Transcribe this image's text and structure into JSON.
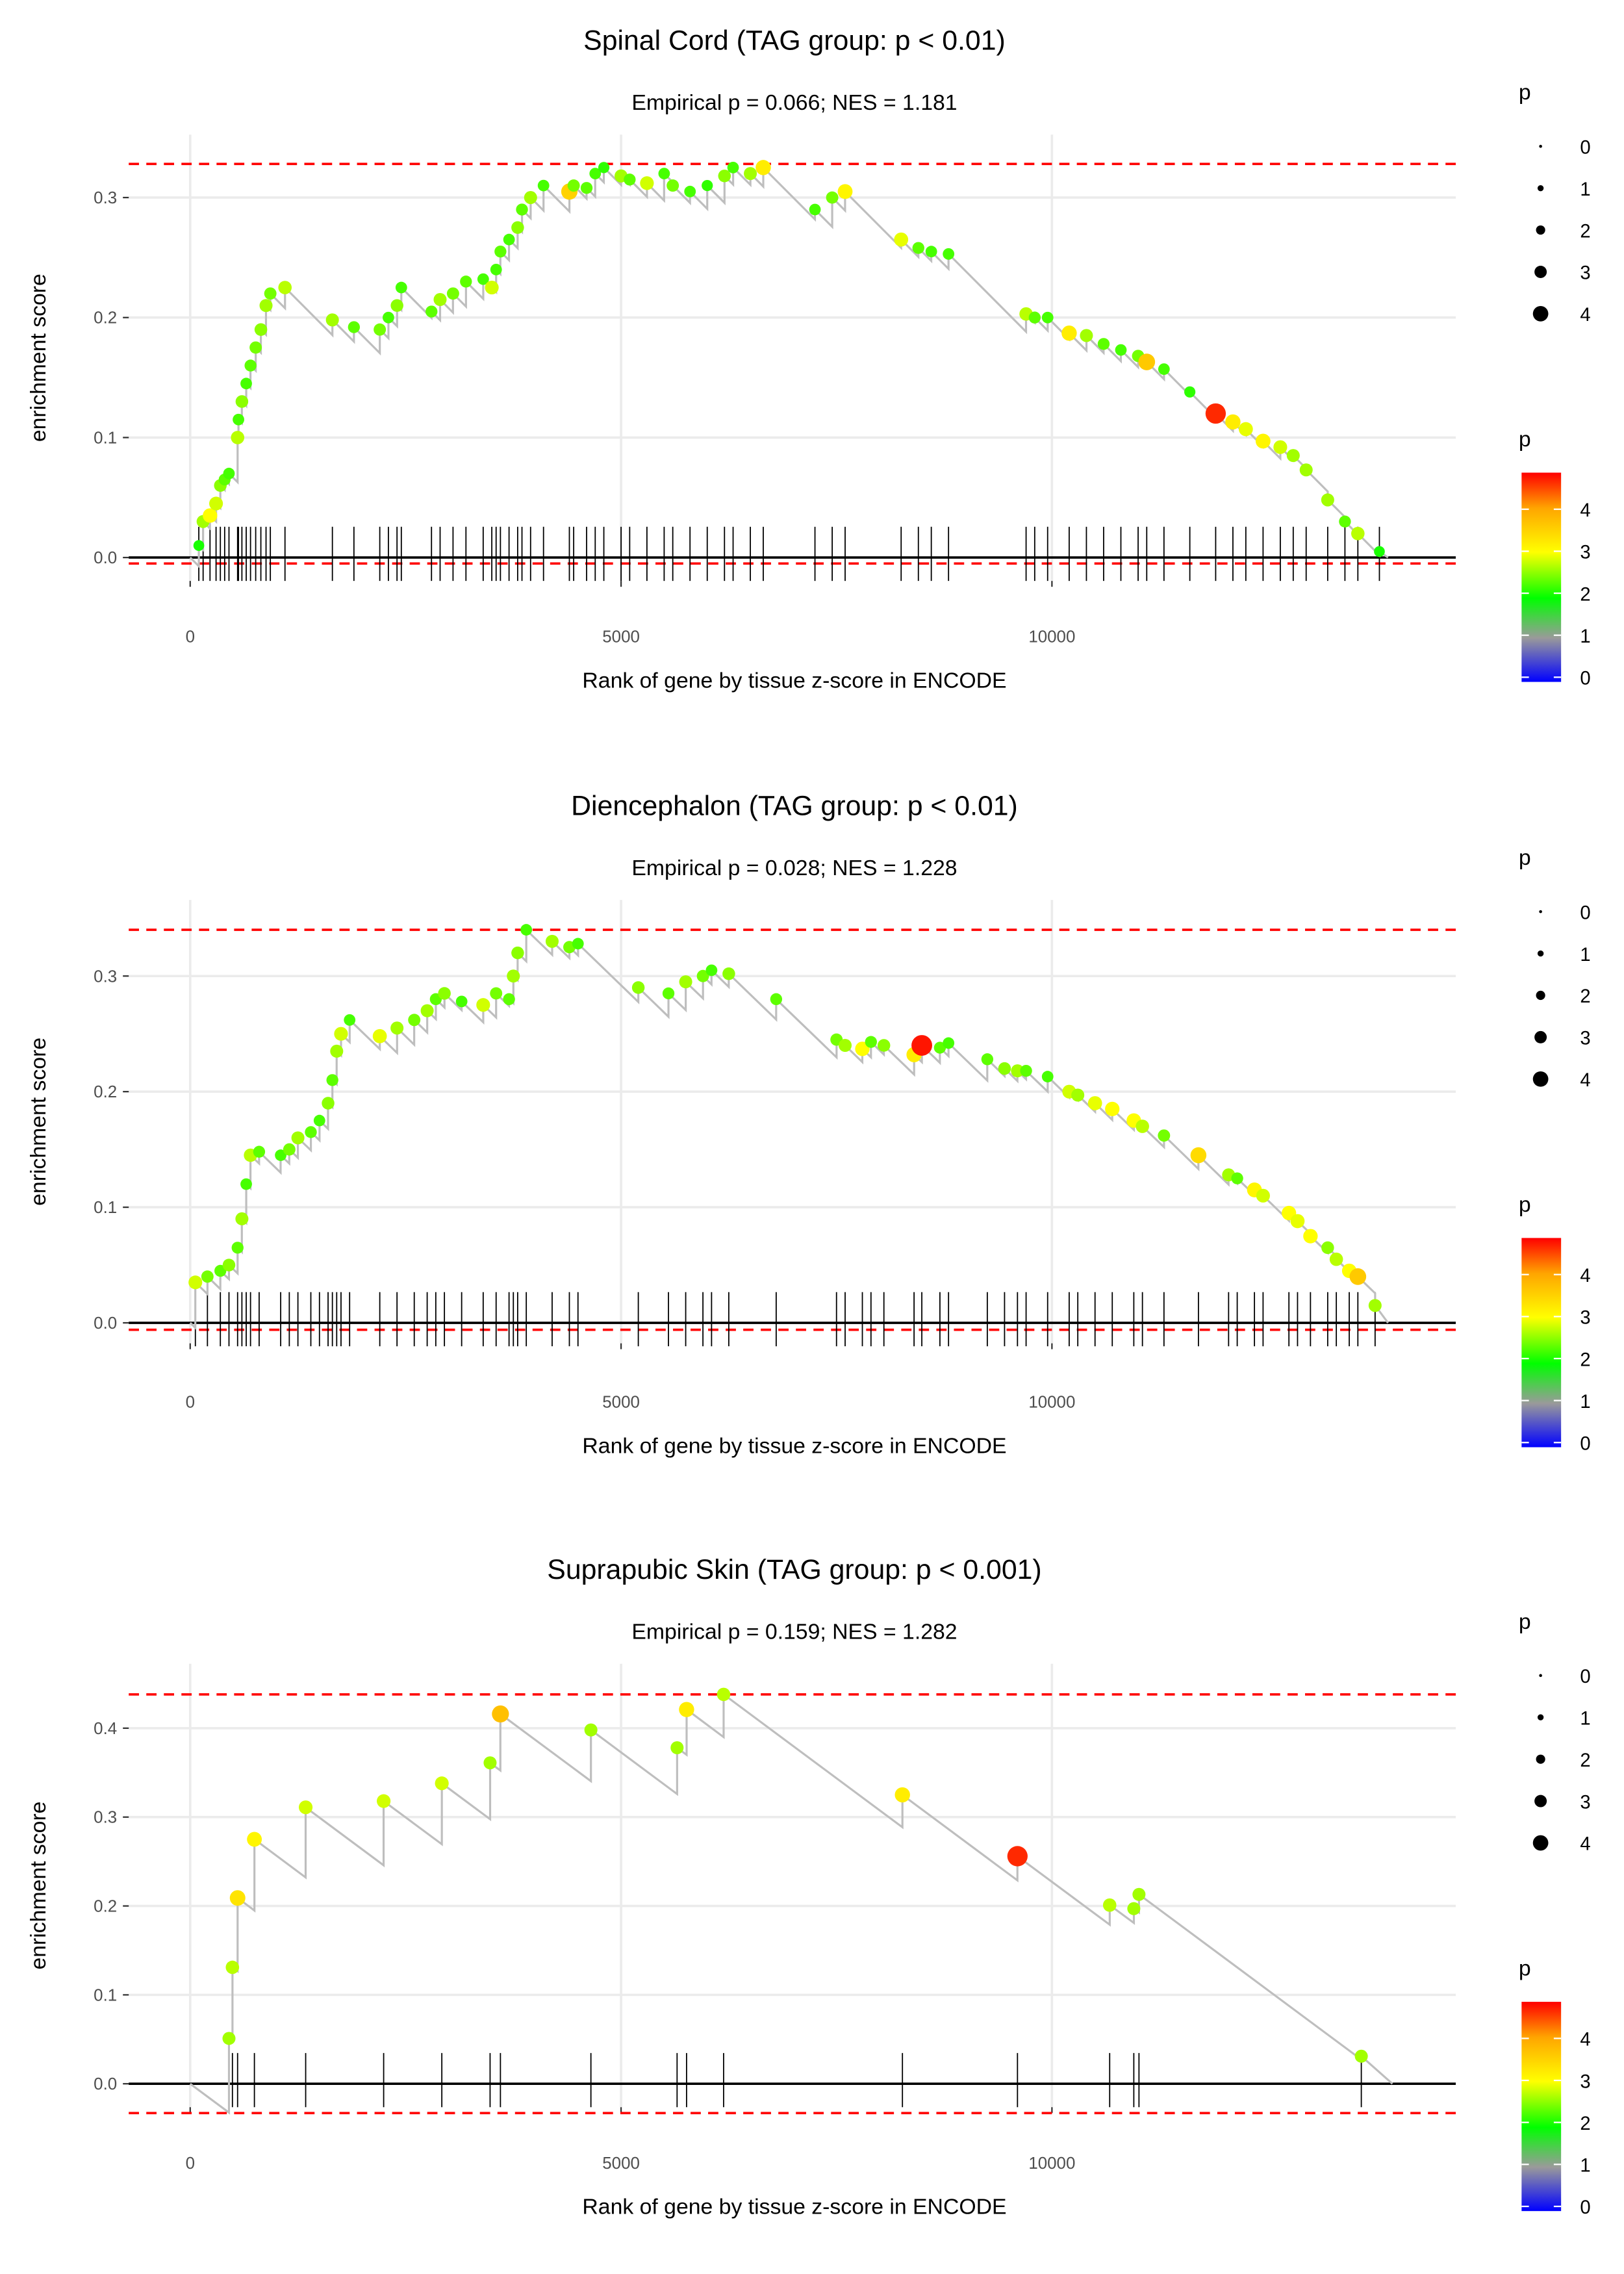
{
  "chart_data": [
    {
      "type": "scatter",
      "title": "Spinal Cord (TAG group: p < 0.01)",
      "subtitle": "Empirical p = 0.066; NES = 1.181",
      "xlabel": "Rank of gene by tissue z-score in ENCODE",
      "ylabel": "enrichment score",
      "xlim": [
        -700,
        14700
      ],
      "ylim": [
        -0.02,
        0.35
      ],
      "xticks": [
        0,
        5000,
        10000
      ],
      "xtick_labels": [
        "0",
        "5000",
        "10000"
      ],
      "yticks": [
        0,
        0.1,
        0.2,
        0.3
      ],
      "ytick_labels": [
        "0.0",
        "0.1",
        "0.2",
        "0.3"
      ],
      "es_max": 0.328,
      "es_min": -0.005,
      "end_rank": 13900,
      "miss_slope": 7.2e-05,
      "hits": [
        [
          100,
          0.01,
          2.0
        ],
        [
          150,
          0.03,
          2.6
        ],
        [
          230,
          0.035,
          3.0
        ],
        [
          300,
          0.045,
          2.8
        ],
        [
          350,
          0.06,
          2.5
        ],
        [
          400,
          0.065,
          2.3
        ],
        [
          450,
          0.07,
          2.2
        ],
        [
          550,
          0.1,
          2.7
        ],
        [
          560,
          0.115,
          2.2
        ],
        [
          600,
          0.13,
          2.5
        ],
        [
          650,
          0.145,
          2.2
        ],
        [
          700,
          0.16,
          2.3
        ],
        [
          760,
          0.175,
          2.4
        ],
        [
          820,
          0.19,
          2.5
        ],
        [
          880,
          0.21,
          2.6
        ],
        [
          930,
          0.22,
          2.4
        ],
        [
          1100,
          0.225,
          2.7
        ],
        [
          1650,
          0.198,
          2.6
        ],
        [
          1900,
          0.192,
          2.3
        ],
        [
          2200,
          0.19,
          2.4
        ],
        [
          2300,
          0.2,
          2.2
        ],
        [
          2400,
          0.21,
          2.5
        ],
        [
          2450,
          0.225,
          2.2
        ],
        [
          2800,
          0.205,
          2.3
        ],
        [
          2900,
          0.215,
          2.6
        ],
        [
          3050,
          0.22,
          2.4
        ],
        [
          3200,
          0.23,
          2.3
        ],
        [
          3400,
          0.232,
          2.2
        ],
        [
          3500,
          0.225,
          2.8
        ],
        [
          3550,
          0.24,
          2.2
        ],
        [
          3600,
          0.255,
          2.3
        ],
        [
          3700,
          0.265,
          2.2
        ],
        [
          3800,
          0.275,
          2.5
        ],
        [
          3850,
          0.29,
          2.3
        ],
        [
          3950,
          0.3,
          2.6
        ],
        [
          4100,
          0.31,
          2.2
        ],
        [
          4400,
          0.305,
          3.5
        ],
        [
          4450,
          0.31,
          2.4
        ],
        [
          4600,
          0.308,
          2.3
        ],
        [
          4700,
          0.32,
          2.2
        ],
        [
          4800,
          0.325,
          2.1
        ],
        [
          5000,
          0.318,
          2.6
        ],
        [
          5100,
          0.315,
          2.3
        ],
        [
          5300,
          0.312,
          2.8
        ],
        [
          5500,
          0.32,
          2.2
        ],
        [
          5600,
          0.31,
          2.4
        ],
        [
          5800,
          0.305,
          2.2
        ],
        [
          6000,
          0.31,
          2.1
        ],
        [
          6200,
          0.318,
          2.5
        ],
        [
          6300,
          0.325,
          2.2
        ],
        [
          6500,
          0.32,
          2.6
        ],
        [
          6650,
          0.325,
          3.2
        ],
        [
          7250,
          0.29,
          2.2
        ],
        [
          7450,
          0.3,
          2.4
        ],
        [
          7600,
          0.305,
          3.1
        ],
        [
          8250,
          0.265,
          2.9
        ],
        [
          8450,
          0.258,
          2.3
        ],
        [
          8600,
          0.255,
          2.2
        ],
        [
          8800,
          0.253,
          2.2
        ],
        [
          9700,
          0.203,
          2.7
        ],
        [
          9800,
          0.2,
          2.3
        ],
        [
          9950,
          0.2,
          2.2
        ],
        [
          10200,
          0.187,
          3.2
        ],
        [
          10400,
          0.185,
          2.6
        ],
        [
          10600,
          0.178,
          2.3
        ],
        [
          10800,
          0.173,
          2.2
        ],
        [
          11000,
          0.168,
          2.4
        ],
        [
          11100,
          0.163,
          3.6
        ],
        [
          11300,
          0.157,
          2.2
        ],
        [
          11600,
          0.138,
          2.1
        ],
        [
          11900,
          0.12,
          4.6
        ],
        [
          12100,
          0.113,
          3.2
        ],
        [
          12250,
          0.107,
          2.9
        ],
        [
          12450,
          0.097,
          3.1
        ],
        [
          12650,
          0.092,
          2.8
        ],
        [
          12800,
          0.085,
          2.6
        ],
        [
          12950,
          0.073,
          2.6
        ],
        [
          13200,
          0.048,
          2.6
        ],
        [
          13400,
          0.03,
          2.3
        ],
        [
          13550,
          0.02,
          2.7
        ],
        [
          13800,
          0.005,
          2.0
        ]
      ]
    },
    {
      "type": "scatter",
      "title": "Diencephalon (TAG group: p < 0.01)",
      "subtitle": "Empirical p = 0.028; NES = 1.228",
      "xlabel": "Rank of gene by tissue z-score in ENCODE",
      "ylabel": "enrichment score",
      "xlim": [
        -700,
        14700
      ],
      "ylim": [
        -0.02,
        0.36
      ],
      "xticks": [
        0,
        5000,
        10000
      ],
      "xtick_labels": [
        "0",
        "5000",
        "10000"
      ],
      "yticks": [
        0,
        0.1,
        0.2,
        0.3
      ],
      "ytick_labels": [
        "0.0",
        "0.1",
        "0.2",
        "0.3"
      ],
      "es_max": 0.34,
      "es_min": -0.006,
      "end_rank": 13900,
      "miss_slope": 7.2e-05,
      "hits": [
        [
          60,
          0.035,
          2.8
        ],
        [
          200,
          0.04,
          2.4
        ],
        [
          350,
          0.045,
          2.3
        ],
        [
          450,
          0.05,
          2.5
        ],
        [
          550,
          0.065,
          2.3
        ],
        [
          600,
          0.09,
          2.6
        ],
        [
          650,
          0.12,
          2.2
        ],
        [
          700,
          0.145,
          2.7
        ],
        [
          800,
          0.148,
          2.3
        ],
        [
          1050,
          0.145,
          2.2
        ],
        [
          1150,
          0.15,
          2.4
        ],
        [
          1250,
          0.16,
          2.6
        ],
        [
          1400,
          0.165,
          2.3
        ],
        [
          1500,
          0.175,
          2.2
        ],
        [
          1600,
          0.19,
          2.5
        ],
        [
          1650,
          0.21,
          2.3
        ],
        [
          1700,
          0.235,
          2.6
        ],
        [
          1750,
          0.25,
          2.8
        ],
        [
          1850,
          0.262,
          2.2
        ],
        [
          2200,
          0.248,
          2.9
        ],
        [
          2400,
          0.255,
          2.6
        ],
        [
          2600,
          0.262,
          2.4
        ],
        [
          2750,
          0.27,
          2.6
        ],
        [
          2850,
          0.28,
          2.3
        ],
        [
          2950,
          0.285,
          2.5
        ],
        [
          3150,
          0.278,
          2.2
        ],
        [
          3400,
          0.275,
          2.8
        ],
        [
          3550,
          0.285,
          2.4
        ],
        [
          3700,
          0.28,
          2.3
        ],
        [
          3750,
          0.3,
          2.6
        ],
        [
          3800,
          0.32,
          2.5
        ],
        [
          3900,
          0.34,
          2.2
        ],
        [
          4200,
          0.33,
          2.6
        ],
        [
          4400,
          0.325,
          2.4
        ],
        [
          4500,
          0.328,
          2.2
        ],
        [
          5200,
          0.29,
          2.5
        ],
        [
          5550,
          0.285,
          2.3
        ],
        [
          5750,
          0.295,
          2.6
        ],
        [
          5950,
          0.3,
          2.4
        ],
        [
          6050,
          0.305,
          2.2
        ],
        [
          6250,
          0.302,
          2.5
        ],
        [
          6800,
          0.28,
          2.3
        ],
        [
          7500,
          0.245,
          2.4
        ],
        [
          7600,
          0.24,
          2.6
        ],
        [
          7800,
          0.237,
          3.0
        ],
        [
          7900,
          0.243,
          2.3
        ],
        [
          8050,
          0.24,
          2.5
        ],
        [
          8400,
          0.232,
          3.2
        ],
        [
          8490,
          0.24,
          4.7
        ],
        [
          8700,
          0.238,
          2.3
        ],
        [
          8800,
          0.242,
          2.2
        ],
        [
          9250,
          0.228,
          2.3
        ],
        [
          9450,
          0.22,
          2.5
        ],
        [
          9600,
          0.218,
          2.6
        ],
        [
          9700,
          0.218,
          2.3
        ],
        [
          9950,
          0.213,
          2.2
        ],
        [
          10200,
          0.2,
          2.8
        ],
        [
          10300,
          0.197,
          2.6
        ],
        [
          10500,
          0.19,
          2.9
        ],
        [
          10700,
          0.185,
          3.0
        ],
        [
          10950,
          0.175,
          3.0
        ],
        [
          11050,
          0.17,
          2.7
        ],
        [
          11300,
          0.162,
          2.4
        ],
        [
          11700,
          0.145,
          3.4
        ],
        [
          12050,
          0.128,
          2.6
        ],
        [
          12150,
          0.125,
          2.3
        ],
        [
          12350,
          0.115,
          3.1
        ],
        [
          12450,
          0.11,
          2.8
        ],
        [
          12750,
          0.095,
          3.0
        ],
        [
          12850,
          0.088,
          2.9
        ],
        [
          13000,
          0.075,
          3.0
        ],
        [
          13200,
          0.065,
          2.5
        ],
        [
          13300,
          0.055,
          2.7
        ],
        [
          13450,
          0.045,
          3.0
        ],
        [
          13550,
          0.04,
          3.6
        ],
        [
          13750,
          0.015,
          2.6
        ]
      ]
    },
    {
      "type": "scatter",
      "title": "Suprapubic Skin (TAG group: p < 0.001)",
      "subtitle": "Empirical p = 0.159; NES = 1.282",
      "xlabel": "Rank of gene by tissue z-score in ENCODE",
      "ylabel": "enrichment score",
      "xlim": [
        -700,
        14700
      ],
      "ylim": [
        -0.04,
        0.46
      ],
      "xticks": [
        0,
        5000,
        10000
      ],
      "xtick_labels": [
        "0",
        "5000",
        "10000"
      ],
      "yticks": [
        0,
        0.1,
        0.2,
        0.3,
        0.4
      ],
      "ytick_labels": [
        "0.0",
        "0.1",
        "0.2",
        "0.3",
        "0.4"
      ],
      "es_max": 0.438,
      "es_min": -0.033,
      "end_rank": 13950,
      "miss_slope": 7.2e-05,
      "hits": [
        [
          450,
          0.051,
          2.6
        ],
        [
          490,
          0.131,
          2.7
        ],
        [
          550,
          0.209,
          3.3
        ],
        [
          745,
          0.275,
          3.1
        ],
        [
          1340,
          0.311,
          2.8
        ],
        [
          2245,
          0.318,
          2.8
        ],
        [
          2920,
          0.338,
          2.8
        ],
        [
          3480,
          0.361,
          2.6
        ],
        [
          3600,
          0.416,
          3.7
        ],
        [
          4650,
          0.398,
          2.6
        ],
        [
          5650,
          0.378,
          2.6
        ],
        [
          5760,
          0.421,
          3.2
        ],
        [
          6190,
          0.438,
          2.7
        ],
        [
          8265,
          0.325,
          3.2
        ],
        [
          9600,
          0.256,
          4.6
        ],
        [
          10670,
          0.201,
          2.7
        ],
        [
          10950,
          0.197,
          2.6
        ],
        [
          11010,
          0.213,
          2.6
        ],
        [
          13590,
          0.031,
          2.6
        ]
      ]
    }
  ],
  "legend": {
    "size_title": "p",
    "size_labels": [
      "0",
      "1",
      "2",
      "3",
      "4"
    ],
    "color_title": "p",
    "color_labels": [
      "4",
      "3",
      "2",
      "1",
      "0"
    ],
    "color_stops": [
      [
        0,
        "#0000ff"
      ],
      [
        1,
        "#9a9a9a"
      ],
      [
        1.9,
        "#00ff00"
      ],
      [
        3,
        "#ffff00"
      ],
      [
        4,
        "#ffa500"
      ],
      [
        4.8,
        "#ff0000"
      ]
    ]
  },
  "colors": {
    "line": "#bebebe",
    "bounds": "#ff0000",
    "grid": "#ebebeb",
    "rug": "#000000"
  }
}
